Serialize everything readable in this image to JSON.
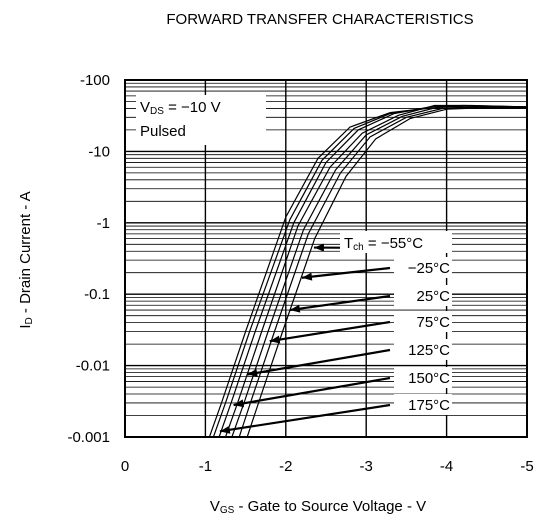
{
  "chart_data": {
    "type": "line",
    "title": "FORWARD TRANSFER CHARACTERISTICS",
    "xlabel": {
      "main": "V",
      "sub": "GS",
      "rest": " - Gate to Source Voltage - V"
    },
    "ylabel": {
      "main": "I",
      "sub": "D",
      "rest": " - Drain Current - A"
    },
    "x_scale": "linear",
    "y_scale": "log",
    "xlim": [
      0,
      -5
    ],
    "ylim": [
      -0.001,
      -100
    ],
    "x_ticks": [
      "0",
      "-1",
      "-2",
      "-3",
      "-4",
      "-5"
    ],
    "x_tick_values": [
      0,
      -1,
      -2,
      -3,
      -4,
      -5
    ],
    "y_ticks": [
      "-0.001",
      "-0.01",
      "-0.1",
      "-1",
      "-10",
      "-100"
    ],
    "y_tick_values": [
      -0.001,
      -0.01,
      -0.1,
      -1,
      -10,
      -100
    ],
    "grid": true,
    "conditions": [
      {
        "main": "V",
        "sub": "DS",
        "rest": " = −10 V"
      },
      {
        "main": "Pulsed",
        "sub": "",
        "rest": ""
      }
    ],
    "series_legend": {
      "main": "T",
      "sub": "ch",
      "rest": " = −55°C"
    },
    "series": [
      {
        "name": "−55°C",
        "label": "",
        "arrow_tip": {
          "x": -2.35,
          "y": -0.45
        },
        "x": [
          -1.05,
          -1.2,
          -1.5,
          -2.0,
          -2.4,
          -2.8,
          -3.3,
          -3.75,
          -4.2,
          -5.0
        ],
        "y": [
          -0.001,
          -0.003,
          -0.03,
          -1.2,
          -8,
          -22,
          -35,
          -40,
          -40,
          -40
        ]
      },
      {
        "name": "−25°C",
        "label": "−25°C",
        "arrow_tip": {
          "x": -2.2,
          "y": -0.17
        },
        "x": [
          -1.1,
          -1.25,
          -1.55,
          -2.05,
          -2.45,
          -2.85,
          -3.3,
          -3.75,
          -4.2,
          -5.0
        ],
        "y": [
          -0.001,
          -0.003,
          -0.03,
          -1.1,
          -7.5,
          -21,
          -34,
          -40,
          -41,
          -40
        ]
      },
      {
        "name": "25°C",
        "label": "25°C",
        "arrow_tip": {
          "x": -2.05,
          "y": -0.06
        },
        "x": [
          -1.17,
          -1.32,
          -1.62,
          -2.1,
          -2.5,
          -2.9,
          -3.35,
          -3.8,
          -4.2,
          -5.0
        ],
        "y": [
          -0.001,
          -0.003,
          -0.03,
          -1.0,
          -7,
          -20,
          -34,
          -42,
          -44,
          -42
        ]
      },
      {
        "name": "75°C",
        "label": "75°C",
        "arrow_tip": {
          "x": -1.8,
          "y": -0.022
        },
        "x": [
          -1.25,
          -1.4,
          -1.7,
          -2.15,
          -2.55,
          -2.95,
          -3.4,
          -3.85,
          -4.3,
          -5.0
        ],
        "y": [
          -0.001,
          -0.003,
          -0.03,
          -0.9,
          -6,
          -18,
          -32,
          -44,
          -44,
          -42
        ]
      },
      {
        "name": "125°C",
        "label": "125°C",
        "arrow_tip": {
          "x": -1.52,
          "y": -0.0075
        },
        "x": [
          -1.33,
          -1.48,
          -1.78,
          -2.22,
          -2.62,
          -3.0,
          -3.45,
          -3.9,
          -4.3,
          -5.0
        ],
        "y": [
          -0.001,
          -0.003,
          -0.03,
          -0.8,
          -5.5,
          -17,
          -31,
          -42,
          -43,
          -42
        ]
      },
      {
        "name": "150°C",
        "label": "150°C",
        "arrow_tip": {
          "x": -1.35,
          "y": -0.0028
        },
        "x": [
          -1.42,
          -1.56,
          -1.86,
          -2.28,
          -2.68,
          -3.05,
          -3.5,
          -3.95,
          -4.4,
          -5.0
        ],
        "y": [
          -0.001,
          -0.003,
          -0.03,
          -0.7,
          -5,
          -16,
          -30,
          -40,
          -42,
          -41
        ]
      },
      {
        "name": "175°C",
        "label": "175°C",
        "arrow_tip": {
          "x": -1.18,
          "y": -0.0012
        },
        "x": [
          -1.52,
          -1.66,
          -1.96,
          -2.36,
          -2.75,
          -3.12,
          -3.55,
          -4.0,
          -4.5,
          -5.0
        ],
        "y": [
          -0.001,
          -0.003,
          -0.03,
          -0.6,
          -4.5,
          -15,
          -29,
          -39,
          -41,
          -40
        ]
      }
    ]
  }
}
